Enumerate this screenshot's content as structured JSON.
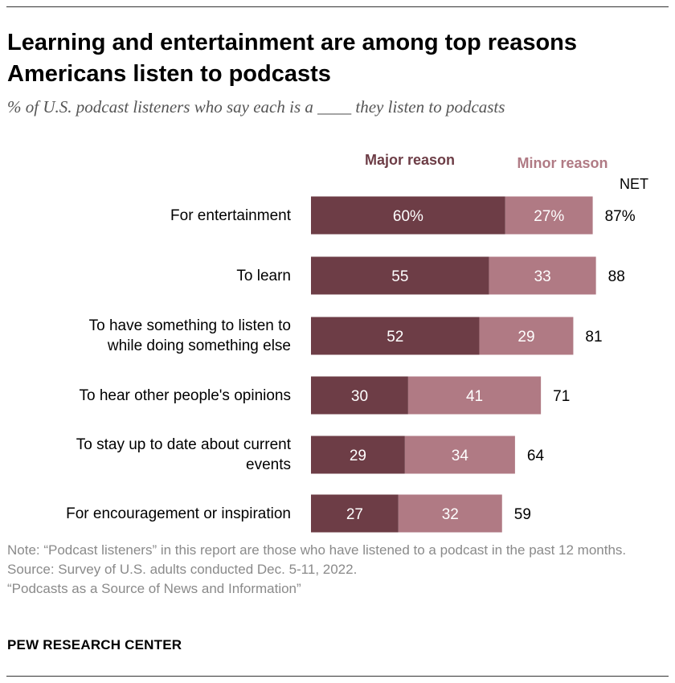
{
  "header": {
    "title": "Learning and entertainment are among top reasons Americans listen to podcasts",
    "subtitle": "% of U.S. podcast listeners who say each is a ____ they listen to podcasts"
  },
  "legend": {
    "major": "Major reason",
    "minor": "Minor reason",
    "net": "NET"
  },
  "chart_data": {
    "type": "bar",
    "orientation": "horizontal",
    "stacked": true,
    "categories": [
      "For entertainment",
      "To learn",
      "To have something to listen to while doing something else",
      "To hear other people's opinions",
      "To stay up to date about current events",
      "For encouragement or inspiration"
    ],
    "category_lines": [
      [
        "For entertainment"
      ],
      [
        "To learn"
      ],
      [
        "To have something to listen to",
        "while doing something else"
      ],
      [
        "To hear other people's opinions"
      ],
      [
        "To stay up to date about current",
        "events"
      ],
      [
        "For encouragement or inspiration"
      ]
    ],
    "series": [
      {
        "name": "Major reason",
        "color": "#6d3d46",
        "values": [
          60,
          55,
          52,
          30,
          29,
          27
        ],
        "labels": [
          "60%",
          "55",
          "52",
          "30",
          "29",
          "27"
        ]
      },
      {
        "name": "Minor reason",
        "color": "#b07a84",
        "values": [
          27,
          33,
          29,
          41,
          34,
          32
        ],
        "labels": [
          "27%",
          "33",
          "29",
          "41",
          "34",
          "32"
        ]
      }
    ],
    "net": {
      "name": "NET",
      "values": [
        87,
        88,
        81,
        71,
        64,
        59
      ],
      "labels": [
        "87%",
        "88",
        "81",
        "71",
        "64",
        "59"
      ]
    },
    "xlim": [
      0,
      100
    ],
    "title": "Learning and entertainment are among top reasons Americans listen to podcasts",
    "xlabel": "",
    "ylabel": ""
  },
  "footer": {
    "note": "Note: “Podcast listeners” in this report are those who have listened to a podcast in the past 12 months.",
    "source": "Source: Survey of U.S. adults conducted Dec. 5-11, 2022.",
    "report": "“Podcasts as a Source of News and Information”",
    "brand": "PEW RESEARCH CENTER"
  }
}
